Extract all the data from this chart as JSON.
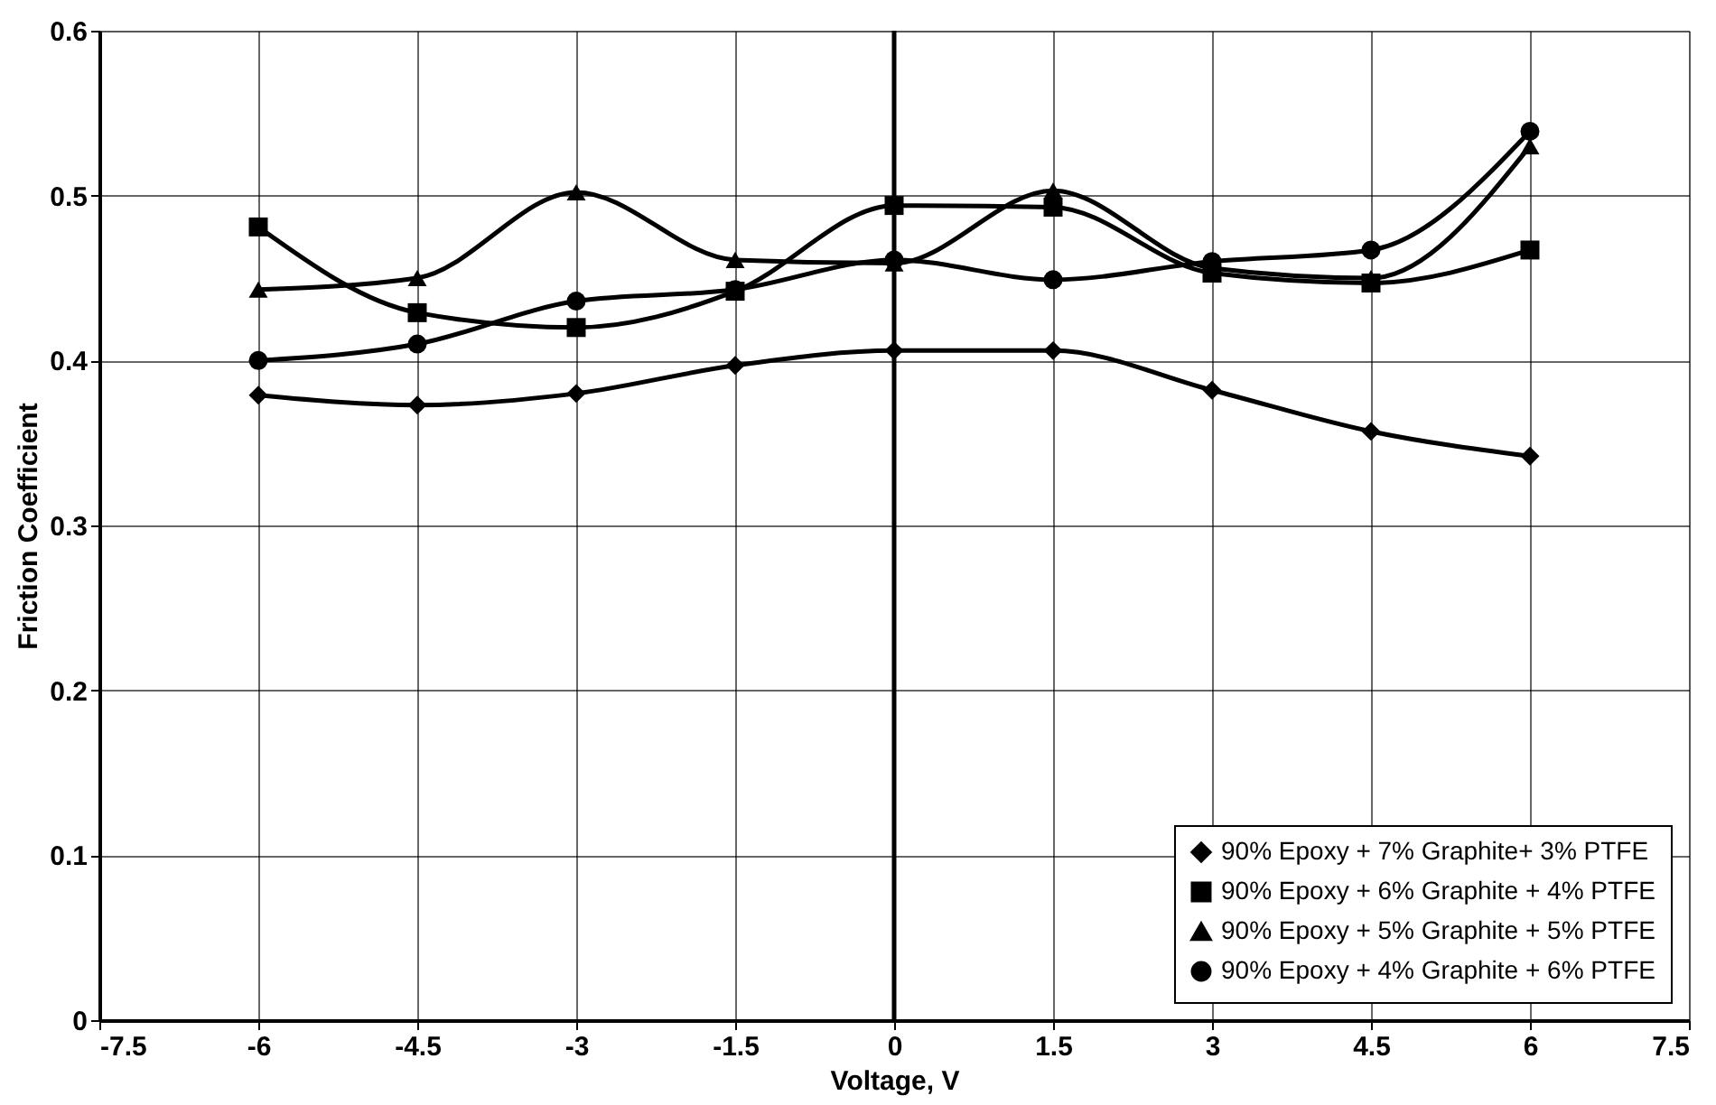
{
  "chart_data": {
    "type": "line",
    "xlabel": "Voltage, V",
    "ylabel": "Friction Coefficient",
    "x": [
      -6,
      -4.5,
      -3,
      -1.5,
      0,
      1.5,
      3,
      4.5,
      6
    ],
    "series": [
      {
        "name": "90% Epoxy + 7% Graphite+ 3% PTFE",
        "color": "#000000",
        "marker": "diamond",
        "values": [
          0.379,
          0.373,
          0.38,
          0.397,
          0.406,
          0.406,
          0.382,
          0.357,
          0.342
        ]
      },
      {
        "name": "90% Epoxy + 6% Graphite + 4% PTFE",
        "color": "#000000",
        "marker": "square",
        "values": [
          0.481,
          0.429,
          0.42,
          0.442,
          0.494,
          0.493,
          0.453,
          0.447,
          0.467
        ]
      },
      {
        "name": "90% Epoxy + 5% Graphite + 5% PTFE",
        "color": "#000000",
        "marker": "triangle",
        "values": [
          0.443,
          0.45,
          0.502,
          0.461,
          0.459,
          0.503,
          0.456,
          0.45,
          0.53
        ]
      },
      {
        "name": "90% Epoxy + 4% Graphite + 6% PTFE",
        "color": "#000000",
        "marker": "circle",
        "values": [
          0.4,
          0.41,
          0.436,
          0.443,
          0.461,
          0.449,
          0.46,
          0.467,
          0.539
        ]
      }
    ],
    "xlim": [
      -7.5,
      7.5
    ],
    "xticks": [
      -7.5,
      -6,
      -4.5,
      -3,
      -1.5,
      0,
      1.5,
      3,
      4.5,
      6,
      7.5
    ],
    "ylim": [
      0,
      0.6
    ],
    "yticks": [
      0,
      0.1,
      0.2,
      0.3,
      0.4,
      0.5,
      0.6
    ],
    "ref_lines": [
      {
        "axis": "x",
        "value": 0,
        "color": "#000000"
      }
    ],
    "grid": true,
    "legend": "bottom right",
    "line_style": "solid"
  }
}
